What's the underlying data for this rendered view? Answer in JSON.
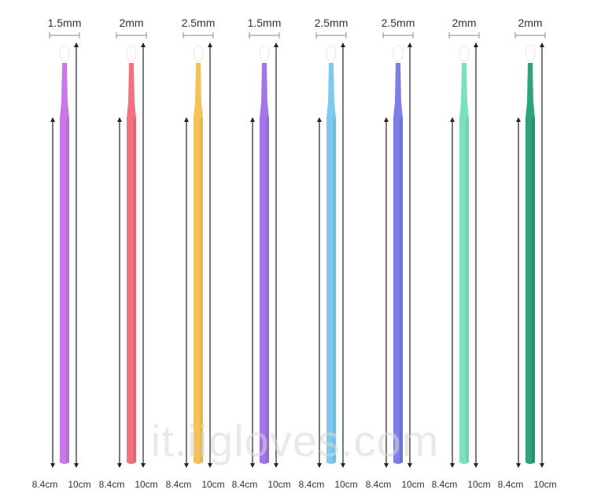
{
  "watermark": "it.iigloves.com",
  "swabs": [
    {
      "tip_size": "1.5mm",
      "color": "#c879e6",
      "dark": "#b066d2",
      "len_short": "8.4cm",
      "len_long": "10cm"
    },
    {
      "tip_size": "2mm",
      "color": "#f2717f",
      "dark": "#e05c6c",
      "len_short": "8.4cm",
      "len_long": "10cm"
    },
    {
      "tip_size": "2.5mm",
      "color": "#f3c25a",
      "dark": "#e6ae3e",
      "len_short": "8.4cm",
      "len_long": "10cm"
    },
    {
      "tip_size": "1.5mm",
      "color": "#a276e8",
      "dark": "#8c5fd8",
      "len_short": "8.4cm",
      "len_long": "10cm"
    },
    {
      "tip_size": "2.5mm",
      "color": "#80c9ee",
      "dark": "#62b5e0",
      "len_short": "8.4cm",
      "len_long": "10cm"
    },
    {
      "tip_size": "2.5mm",
      "color": "#7d7fe4",
      "dark": "#6668d6",
      "len_short": "8.4cm",
      "len_long": "10cm"
    },
    {
      "tip_size": "2mm",
      "color": "#7de0bd",
      "dark": "#5ccfa8",
      "len_short": "8.4cm",
      "len_long": "10cm"
    },
    {
      "tip_size": "2mm",
      "color": "#2fa37a",
      "dark": "#1f8a64",
      "len_short": "8.4cm",
      "len_long": "10cm"
    }
  ]
}
